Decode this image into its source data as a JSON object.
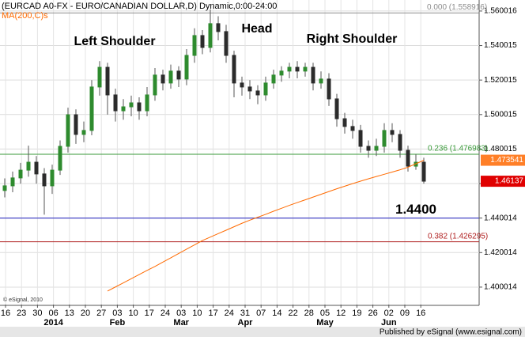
{
  "chart_data": {
    "type": "candlestick",
    "title": "(EURCAD A0-FX - EURO/CANADIAN DOLLAR,D) Dynamic,0:00-24:00",
    "indicator_label": "MA(200,C)s",
    "watermark": "© eSignal, 2010",
    "footer": "Published by eSignal (www.esignal.com)",
    "annotations": [
      "Left Shoulder",
      "Head",
      "Right Shoulder"
    ],
    "categories": [
      "16",
      "23",
      "30",
      "06",
      "13",
      "20",
      "27",
      "03",
      "10",
      "17",
      "24",
      "03",
      "10",
      "17",
      "24",
      "31",
      "07",
      "14",
      "22",
      "28",
      "05",
      "12",
      "19",
      "26",
      "02",
      "09",
      "16"
    ],
    "month_labels": [
      null,
      null,
      null,
      "2014",
      null,
      null,
      null,
      "Feb",
      null,
      null,
      null,
      "Mar",
      null,
      null,
      null,
      "Apr",
      null,
      null,
      null,
      null,
      "May",
      null,
      null,
      null,
      "Jun",
      null,
      null
    ],
    "ylim": [
      1.3899,
      1.5664
    ],
    "yticks": [
      1.400014,
      1.420014,
      1.440014,
      1.460014,
      1.480015,
      1.500015,
      1.520015,
      1.540015,
      1.560016
    ],
    "grid": true,
    "up_color": "#2e8b2e",
    "down_color": "#2b2b2b",
    "open": [
      1.456,
      1.4587,
      1.4633,
      1.4678,
      1.4724,
      1.4656,
      1.4587,
      1.4678,
      1.4816,
      1.4999,
      1.4885,
      1.4908,
      1.516,
      1.5274,
      1.5114,
      1.5022,
      1.5045,
      1.5068,
      1.5022,
      1.5114,
      1.5229,
      1.5183,
      1.5252,
      1.5206,
      1.5343,
      1.5458,
      1.5389,
      1.5527,
      1.5481,
      1.5343,
      1.5183,
      1.516,
      1.5137,
      1.5114,
      1.5183,
      1.5229,
      1.5252,
      1.5274,
      1.5252,
      1.5274,
      1.5183,
      1.5206,
      1.5091,
      1.4976,
      1.4931,
      1.4908,
      1.4816,
      1.4793,
      1.4816,
      1.4908,
      1.4885,
      1.4793,
      1.4701,
      1.4724
    ],
    "high": [
      1.463,
      1.467,
      1.472,
      1.482,
      1.476,
      1.469,
      1.471,
      1.485,
      1.504,
      1.503,
      1.496,
      1.52,
      1.531,
      1.53,
      1.515,
      1.509,
      1.511,
      1.51,
      1.516,
      1.527,
      1.526,
      1.529,
      1.528,
      1.538,
      1.55,
      1.549,
      1.561,
      1.557,
      1.552,
      1.537,
      1.522,
      1.52,
      1.517,
      1.522,
      1.526,
      1.528,
      1.53,
      1.531,
      1.53,
      1.53,
      1.525,
      1.524,
      1.512,
      1.501,
      1.497,
      1.494,
      1.485,
      1.486,
      1.495,
      1.495,
      1.491,
      1.482,
      1.477,
      1.475
    ],
    "low": [
      1.452,
      1.455,
      1.46,
      1.464,
      1.46,
      1.442,
      1.454,
      1.465,
      1.478,
      1.483,
      1.484,
      1.488,
      1.511,
      1.5,
      1.496,
      1.497,
      1.499,
      1.497,
      1.499,
      1.508,
      1.514,
      1.515,
      1.516,
      1.517,
      1.53,
      1.535,
      1.536,
      1.543,
      1.53,
      1.51,
      1.511,
      1.509,
      1.506,
      1.508,
      1.515,
      1.519,
      1.521,
      1.521,
      1.522,
      1.514,
      1.515,
      1.505,
      1.493,
      1.489,
      1.486,
      1.478,
      1.475,
      1.476,
      1.478,
      1.484,
      1.475,
      1.467,
      1.468,
      1.46
    ],
    "close": [
      1.4587,
      1.4633,
      1.4678,
      1.4724,
      1.4656,
      1.4587,
      1.4678,
      1.4816,
      1.4999,
      1.4885,
      1.4908,
      1.516,
      1.5274,
      1.5114,
      1.5022,
      1.5045,
      1.5068,
      1.5022,
      1.5114,
      1.5229,
      1.5183,
      1.5252,
      1.5206,
      1.5343,
      1.5458,
      1.5389,
      1.5527,
      1.5481,
      1.5343,
      1.5183,
      1.516,
      1.5137,
      1.5114,
      1.5183,
      1.5229,
      1.5252,
      1.5274,
      1.5252,
      1.5274,
      1.5183,
      1.5206,
      1.5091,
      1.4976,
      1.4931,
      1.4908,
      1.4816,
      1.4793,
      1.4816,
      1.4908,
      1.4885,
      1.4793,
      1.4701,
      1.4724,
      1.4614
    ],
    "ma": {
      "name": "MA(200,C)s",
      "color": "#ff6a00",
      "values": [
        null,
        null,
        null,
        null,
        null,
        null,
        null,
        null,
        null,
        null,
        null,
        null,
        null,
        1.3977,
        1.4001,
        1.4025,
        1.4049,
        1.4073,
        1.4097,
        1.412,
        1.4145,
        1.417,
        1.4195,
        1.422,
        1.4245,
        1.427,
        1.429,
        1.431,
        1.433,
        1.435,
        1.437,
        1.4388,
        1.4405,
        1.4422,
        1.444,
        1.4457,
        1.4474,
        1.449,
        1.4506,
        1.4522,
        1.4538,
        1.4554,
        1.457,
        1.4585,
        1.46,
        1.4614,
        1.4628,
        1.4641,
        1.4654,
        1.4667,
        1.468,
        1.4695,
        1.4715,
        1.4735
      ]
    },
    "levels": [
      {
        "value": 1.558916,
        "label": "0.000 (1.558916)",
        "color": "#8c8c8c"
      },
      {
        "value": 1.476983,
        "label": "0.236 (1.476983)",
        "color": "#3a9a3a"
      },
      {
        "value": 1.44,
        "label": "1.4400",
        "color": "#2020c0"
      },
      {
        "value": 1.426295,
        "label": "0.382 (1.426295)",
        "color": "#b02020"
      }
    ],
    "price_boxes": [
      {
        "value": 1.473541,
        "color": "#ff7f27"
      },
      {
        "value": 1.46137,
        "color": "#e00000"
      }
    ]
  }
}
